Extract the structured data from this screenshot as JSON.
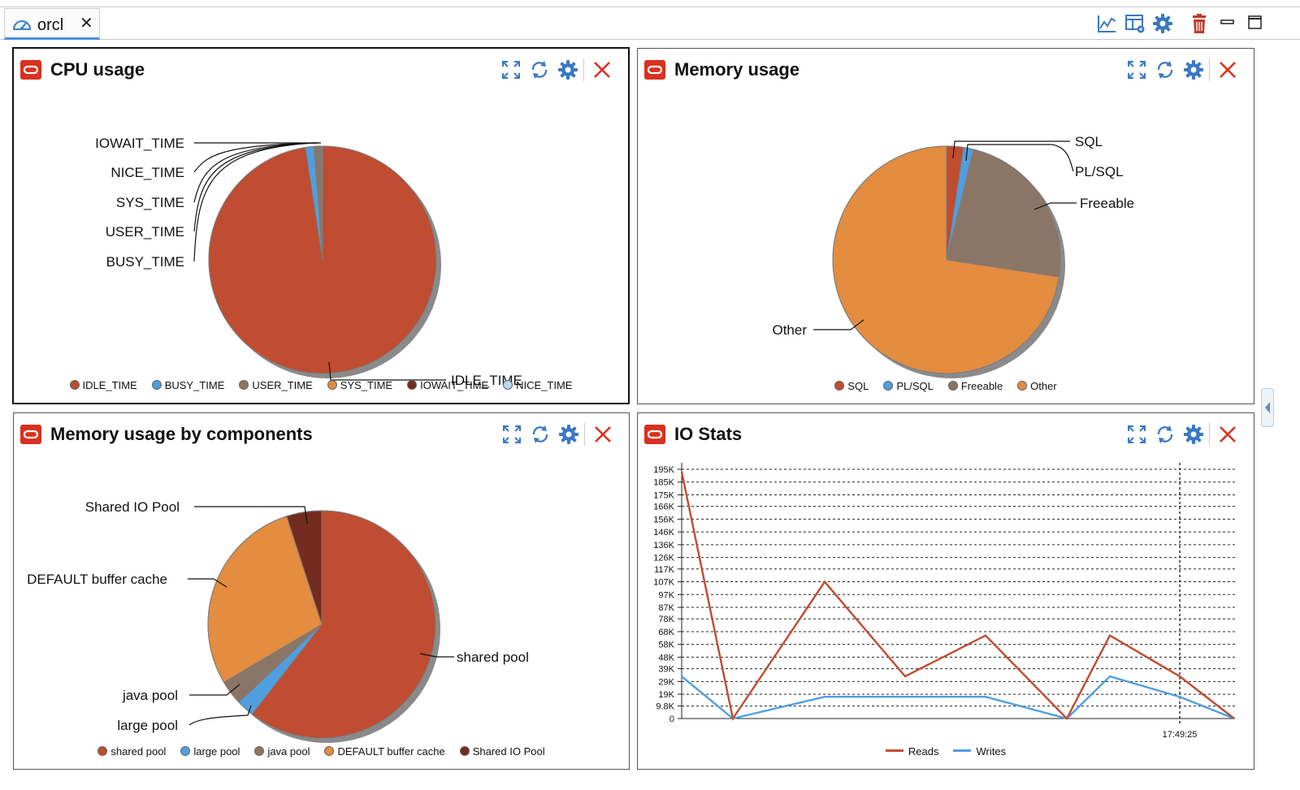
{
  "tab": {
    "label": "orcl"
  },
  "toolbar": {
    "icons": [
      "chart-line-icon",
      "layout-settings-icon",
      "gear-icon",
      "trash-icon",
      "minimize-icon",
      "maximize-icon"
    ]
  },
  "colors": {
    "red": "#c04c31",
    "blue": "#4f9fe0",
    "brown": "#8b7566",
    "orange": "#e48c3f",
    "darkbrown": "#732c1f",
    "lightblue": "#b7d9f2",
    "close_red": "#d9311f"
  },
  "panels": [
    {
      "title": "CPU usage",
      "chart_data": {
        "type": "pie",
        "labels": [
          "IDLE_TIME",
          "BUSY_TIME",
          "USER_TIME",
          "SYS_TIME",
          "IOWAIT_TIME",
          "NICE_TIME"
        ],
        "values": [
          97.6,
          1.2,
          0.9,
          0.1,
          0.1,
          0.1
        ],
        "legend": [
          "IDLE_TIME",
          "BUSY_TIME",
          "USER_TIME",
          "SYS_TIME",
          "IOWAIT_TIME",
          "NICE_TIME"
        ]
      }
    },
    {
      "title": "Memory usage",
      "chart_data": {
        "type": "pie",
        "labels": [
          "SQL",
          "PL/SQL",
          "Freeable",
          "Other"
        ],
        "values": [
          2.4,
          1.4,
          23.6,
          72.6
        ],
        "legend": [
          "SQL",
          "PL/SQL",
          "Freeable",
          "Other"
        ]
      }
    },
    {
      "title": "Memory usage by components",
      "chart_data": {
        "type": "pie",
        "labels": [
          "shared pool",
          "large pool",
          "java pool",
          "DEFAULT buffer cache",
          "Shared IO Pool"
        ],
        "values": [
          60.5,
          2.5,
          3.5,
          28.5,
          5.0
        ],
        "legend": [
          "shared pool",
          "large pool",
          "java pool",
          "DEFAULT buffer cache",
          "Shared IO Pool"
        ]
      }
    },
    {
      "title": "IO Stats",
      "chart_data": {
        "type": "line",
        "y_ticks": [
          "195K",
          "185K",
          "175K",
          "166K",
          "156K",
          "146K",
          "136K",
          "126K",
          "117K",
          "107K",
          "97K",
          "87K",
          "78K",
          "68K",
          "58K",
          "48K",
          "39K",
          "29K",
          "19K",
          "9.8K",
          "0"
        ],
        "y_tick_values": [
          195000,
          185000,
          175000,
          166000,
          156000,
          146000,
          136000,
          126000,
          117000,
          107000,
          97000,
          87000,
          78000,
          68000,
          58000,
          48000,
          39000,
          29000,
          19000,
          9800,
          0
        ],
        "ylim": [
          0,
          195000
        ],
        "x_tick_label": "17:49:25",
        "series": [
          {
            "name": "Reads",
            "values": [
              193000,
              0,
              107000,
              33000,
              65000,
              0,
              65000,
              33000,
              0
            ]
          },
          {
            "name": "Writes",
            "values": [
              33000,
              0,
              17000,
              17000,
              17000,
              0,
              33000,
              17000,
              0
            ]
          }
        ]
      }
    }
  ]
}
